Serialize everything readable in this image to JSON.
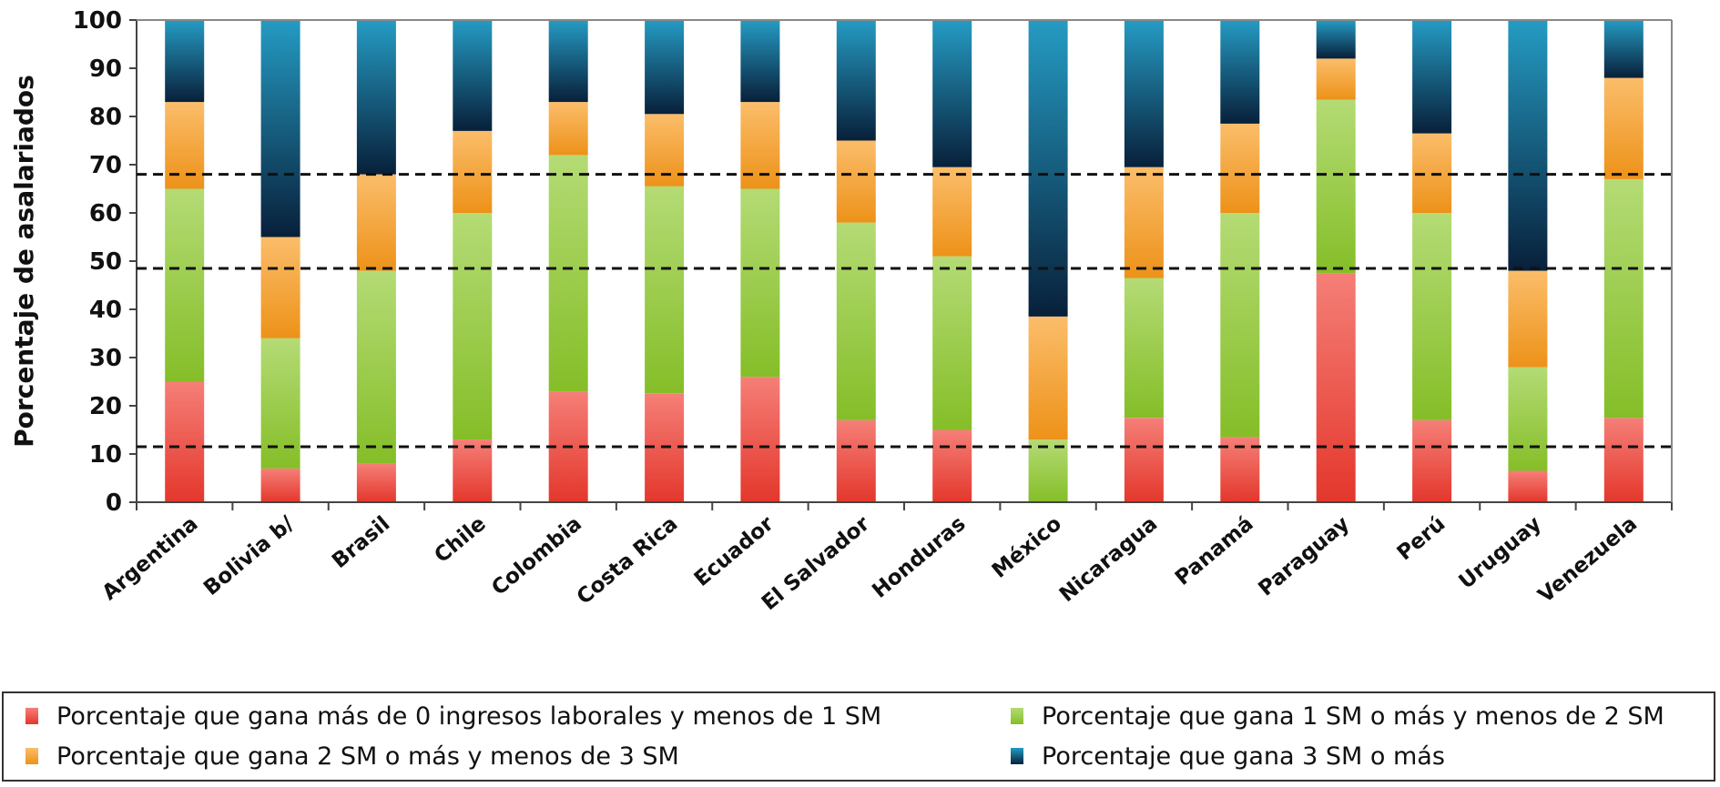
{
  "chart_data": {
    "type": "bar",
    "stacked": true,
    "ylabel": "Porcentaje de asalariados",
    "xlabel": "",
    "ylim": [
      0,
      100
    ],
    "yticks": [
      0,
      10,
      20,
      30,
      40,
      50,
      60,
      70,
      80,
      90,
      100
    ],
    "grid": false,
    "reference_lines": [
      11.5,
      48.5,
      68
    ],
    "legend_position": "bottom",
    "categories": [
      "Argentina",
      "Bolivia b/",
      "Brasil",
      "Chile",
      "Colombia",
      "Costa Rica",
      "Ecuador",
      "El Salvador",
      "Honduras",
      "México",
      "Nicaragua",
      "Panamá",
      "Paraguay",
      "Perú",
      "Uruguay",
      "Venezuela"
    ],
    "series": [
      {
        "name": "Porcentaje que gana más de 0 ingresos laborales y menos de 1 SM",
        "color": "#f03a2e",
        "values": [
          25,
          7,
          8,
          13,
          23,
          22.5,
          26,
          17,
          15,
          0,
          17.5,
          13.5,
          47.5,
          17,
          6.5,
          17.5
        ]
      },
      {
        "name": "Porcentaje que gana 1 SM o más y menos de 2 SM",
        "color": "#8cc82a",
        "values": [
          40,
          27,
          40,
          47,
          49,
          43,
          39,
          41,
          36,
          13,
          29,
          46.5,
          36,
          43,
          21.5,
          49.5
        ]
      },
      {
        "name": "Porcentaje que gana 2 SM o más y menos de 3 SM",
        "color": "#f99a1a",
        "values": [
          18,
          21,
          20,
          17,
          11,
          15,
          18,
          17,
          18.5,
          25.5,
          23,
          18.5,
          8.5,
          16.5,
          20,
          21
        ]
      },
      {
        "name": "Porcentaje que gana 3 SM o más",
        "color": "#1996c0",
        "values": [
          17,
          45,
          32,
          23,
          17,
          19.5,
          17,
          25,
          30.5,
          61.5,
          30.5,
          21.5,
          8,
          23.5,
          52,
          12
        ]
      }
    ],
    "legend": {
      "entries": [
        "Porcentaje que gana más de 0 ingresos laborales y menos de 1 SM",
        "Porcentaje que gana 1 SM o más y menos de 2 SM",
        "Porcentaje que gana 2 SM o más y menos de 3 SM",
        "Porcentaje que gana 3 SM o más"
      ]
    }
  }
}
